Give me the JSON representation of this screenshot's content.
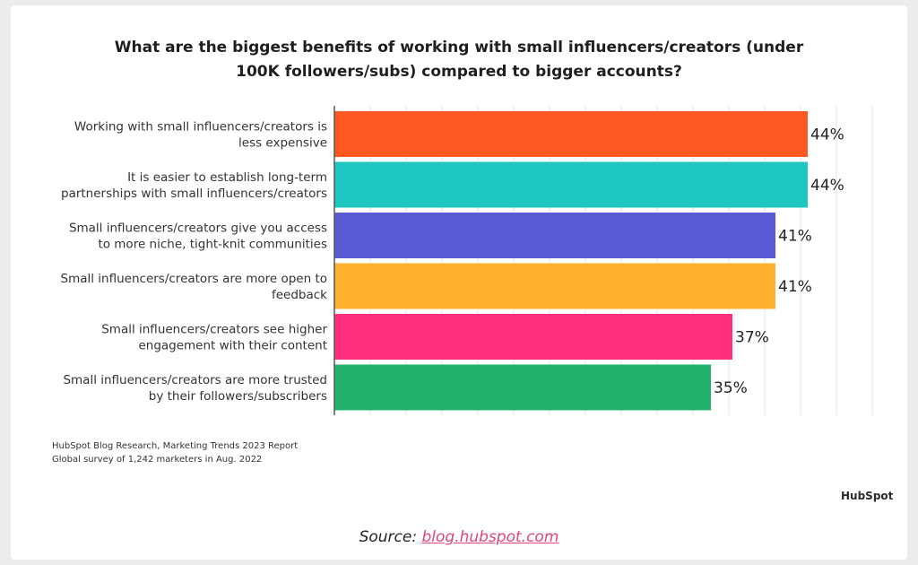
{
  "chart_data": {
    "type": "bar",
    "orientation": "horizontal",
    "title": "What are the biggest benefits of working with small influencers/creators (under 100K followers/subs) compared to bigger accounts?",
    "title_lines": [
      "What are the biggest benefits of working with small influencers/creators (under",
      "100K followers/subs) compared to bigger accounts?"
    ],
    "categories": [
      [
        "Working with small influencers/creators is",
        "less expensive"
      ],
      [
        "It is easier to establish long-term",
        "partnerships with small influencers/creators"
      ],
      [
        "Small influencers/creators give you access",
        "to more niche, tight-knit communities"
      ],
      [
        "Small influencers/creators are more open to",
        "feedback"
      ],
      [
        "Small influencers/creators see higher",
        "engagement with their content"
      ],
      [
        "Small influencers/creators are more trusted",
        "by their followers/subscribers"
      ]
    ],
    "values": [
      44,
      44,
      41,
      41,
      37,
      35
    ],
    "value_labels": [
      "44%",
      "44%",
      "41%",
      "41%",
      "37%",
      "35%"
    ],
    "colors": [
      "#ff5722",
      "#1ec8c0",
      "#5b5bd6",
      "#ffb02e",
      "#ff2f7e",
      "#23b26b"
    ],
    "xlim": [
      0,
      45
    ],
    "grid": true,
    "legend": "none"
  },
  "footnote": {
    "line1": "HubSpot Blog Research, Marketing Trends 2023 Report",
    "line2": "Global survey of 1,242 marketers in Aug. 2022"
  },
  "brand": "HubSpot",
  "source": {
    "prefix": "Source: ",
    "link": "blog.hubspot.com"
  }
}
